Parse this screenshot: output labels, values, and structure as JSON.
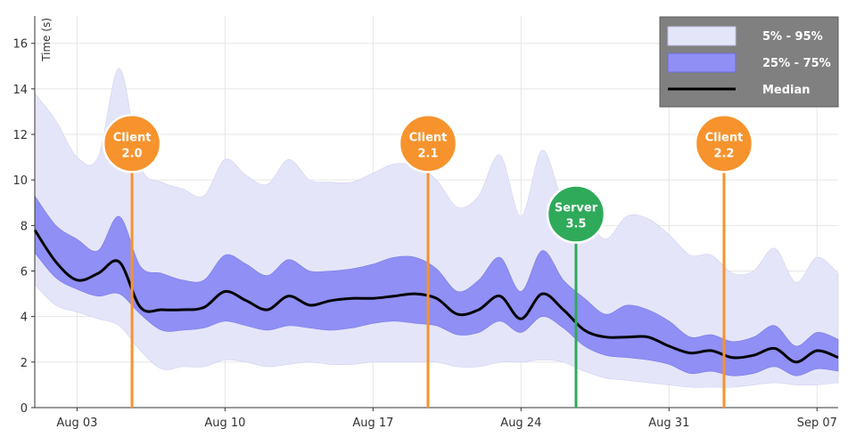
{
  "chart_data": {
    "type": "area",
    "ylabel": "Time (s)",
    "xlabel": "",
    "xlim": [
      0,
      38
    ],
    "ylim": [
      0,
      17.2
    ],
    "grid": true,
    "x_ticks": [
      {
        "x": 2,
        "label": "Aug 03"
      },
      {
        "x": 9,
        "label": "Aug 10"
      },
      {
        "x": 16,
        "label": "Aug 17"
      },
      {
        "x": 23,
        "label": "Aug 24"
      },
      {
        "x": 30,
        "label": "Aug 31"
      },
      {
        "x": 37,
        "label": "Sep 07"
      }
    ],
    "y_ticks": [
      0,
      2,
      4,
      6,
      8,
      10,
      12,
      14,
      16
    ],
    "x": [
      0,
      1,
      2,
      3,
      4,
      5,
      6,
      7,
      8,
      9,
      10,
      11,
      12,
      13,
      14,
      15,
      16,
      17,
      18,
      19,
      20,
      21,
      22,
      23,
      24,
      25,
      26,
      27,
      28,
      29,
      30,
      31,
      32,
      33,
      34,
      35,
      36,
      37,
      38
    ],
    "series": [
      {
        "name": "5% - 95%",
        "color": "#e5e5fa",
        "upper": [
          13.8,
          12.6,
          11.0,
          11.0,
          14.9,
          10.6,
          9.9,
          9.6,
          9.3,
          10.9,
          10.2,
          9.8,
          10.9,
          10.0,
          9.9,
          9.9,
          10.3,
          10.7,
          10.6,
          10.0,
          8.8,
          9.3,
          11.1,
          8.4,
          11.3,
          9.0,
          8.4,
          7.4,
          8.4,
          8.3,
          7.6,
          6.7,
          6.7,
          5.9,
          6.0,
          7.0,
          5.5,
          6.6,
          5.9
        ],
        "lower": [
          5.4,
          4.5,
          4.2,
          3.9,
          3.6,
          2.5,
          1.7,
          1.8,
          1.8,
          2.1,
          2.0,
          1.8,
          1.9,
          2.0,
          1.9,
          1.9,
          2.0,
          2.0,
          2.0,
          2.0,
          1.8,
          1.8,
          2.0,
          2.0,
          2.1,
          2.0,
          1.6,
          1.3,
          1.2,
          1.1,
          1.0,
          0.9,
          0.9,
          0.9,
          1.0,
          1.1,
          1.0,
          1.0,
          1.1
        ]
      },
      {
        "name": "25% - 75%",
        "color": "#8f8ff5",
        "upper": [
          9.3,
          8.0,
          7.4,
          6.9,
          8.4,
          6.2,
          5.9,
          5.6,
          5.6,
          6.7,
          6.3,
          5.8,
          6.5,
          6.0,
          6.0,
          6.1,
          6.3,
          6.6,
          6.6,
          6.1,
          5.1,
          5.6,
          6.6,
          5.1,
          6.9,
          5.6,
          4.8,
          4.1,
          4.5,
          4.3,
          3.8,
          3.1,
          3.2,
          2.9,
          3.1,
          3.6,
          2.7,
          3.3,
          3.0
        ],
        "lower": [
          6.8,
          5.7,
          5.2,
          4.9,
          5.0,
          4.1,
          3.4,
          3.4,
          3.5,
          3.8,
          3.6,
          3.4,
          3.6,
          3.5,
          3.4,
          3.5,
          3.7,
          3.8,
          3.7,
          3.6,
          3.2,
          3.3,
          3.8,
          3.3,
          4.0,
          3.5,
          2.7,
          2.3,
          2.2,
          2.1,
          1.9,
          1.5,
          1.6,
          1.4,
          1.5,
          1.8,
          1.4,
          1.7,
          1.6
        ]
      },
      {
        "name": "Median",
        "color": "#000000",
        "values": [
          7.8,
          6.4,
          5.6,
          5.9,
          6.4,
          4.4,
          4.3,
          4.3,
          4.4,
          5.1,
          4.7,
          4.3,
          4.9,
          4.5,
          4.7,
          4.8,
          4.8,
          4.9,
          5.0,
          4.8,
          4.1,
          4.3,
          4.9,
          3.9,
          5.0,
          4.3,
          3.4,
          3.1,
          3.1,
          3.1,
          2.7,
          2.4,
          2.5,
          2.2,
          2.3,
          2.6,
          2.0,
          2.5,
          2.2
        ]
      }
    ],
    "legend": {
      "position": "top-right",
      "entries": [
        "5% - 95%",
        "25% - 75%",
        "Median"
      ],
      "background": "#808080"
    },
    "annotations": [
      {
        "x": 4.6,
        "line1": "Client",
        "line2": "2.0",
        "color": "#f7932d",
        "y_label": 11.6
      },
      {
        "x": 18.6,
        "line1": "Client",
        "line2": "2.1",
        "color": "#f7932d",
        "y_label": 11.6
      },
      {
        "x": 25.6,
        "line1": "Server",
        "line2": "3.5",
        "color": "#2eaa5a",
        "y_label": 8.5
      },
      {
        "x": 32.6,
        "line1": "Client",
        "line2": "2.2",
        "color": "#f7932d",
        "y_label": 11.6
      }
    ]
  }
}
